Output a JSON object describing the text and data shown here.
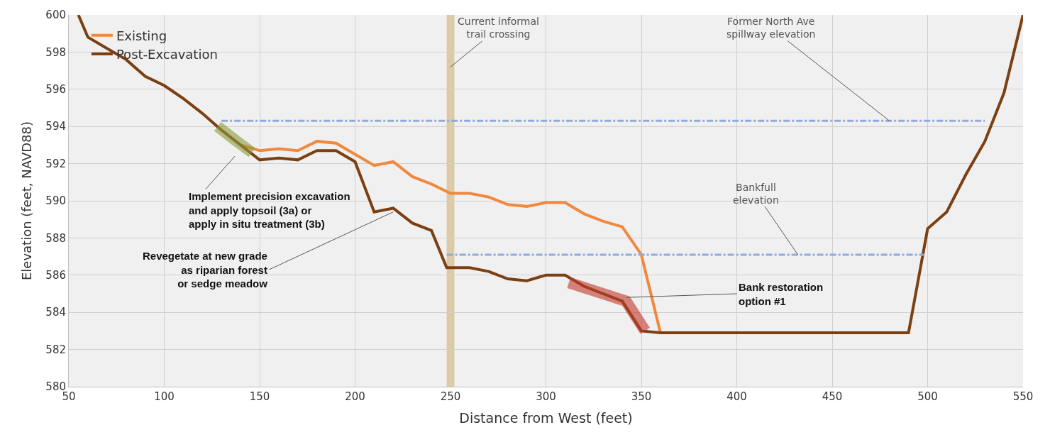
{
  "chart_data": {
    "type": "line",
    "xlabel": "Distance from West (feet)",
    "ylabel": "Elevation (feet, NAVD88)",
    "xlim": [
      50,
      550
    ],
    "xticks": [
      50,
      100,
      150,
      200,
      250,
      300,
      350,
      400,
      450,
      500,
      550
    ],
    "ylim": [
      580,
      600
    ],
    "yticks": [
      580,
      582,
      584,
      586,
      588,
      590,
      592,
      594,
      596,
      598,
      600
    ],
    "grid": true,
    "legend": "top left",
    "line_style": "solid",
    "series": [
      {
        "name": "Existing",
        "color": "#f0883e",
        "x": [
          140,
          150,
          160,
          170,
          180,
          190,
          200,
          210,
          220,
          230,
          240,
          250,
          260,
          270,
          280,
          290,
          300,
          310,
          320,
          330,
          340,
          350,
          360
        ],
        "values": [
          593.0,
          592.7,
          592.8,
          592.7,
          593.2,
          593.1,
          592.5,
          591.9,
          592.1,
          591.3,
          590.9,
          590.4,
          590.4,
          590.2,
          589.8,
          589.7,
          589.9,
          589.9,
          589.3,
          588.9,
          588.6,
          587.1,
          582.9
        ]
      },
      {
        "name": "Post-Excavation",
        "color": "#7b3f12",
        "x": [
          55,
          60,
          70,
          80,
          90,
          100,
          110,
          120,
          130,
          140,
          150,
          160,
          170,
          180,
          190,
          200,
          210,
          220,
          230,
          240,
          248,
          260,
          270,
          280,
          290,
          300,
          310,
          320,
          330,
          340,
          350,
          360,
          490,
          500,
          510,
          520,
          530,
          540,
          550
        ],
        "values": [
          600,
          598.8,
          598.2,
          597.6,
          596.7,
          596.2,
          595.5,
          594.7,
          593.8,
          593.0,
          592.2,
          592.3,
          592.2,
          592.7,
          592.7,
          592.1,
          589.4,
          589.6,
          588.8,
          588.4,
          586.4,
          586.4,
          586.2,
          585.8,
          585.7,
          586.0,
          586.0,
          585.4,
          585.0,
          584.6,
          583.0,
          582.9,
          582.9,
          588.5,
          589.4,
          591.4,
          593.2,
          595.8,
          600
        ]
      },
      {
        "color": "#8faadc",
        "x": [
          130,
          530
        ],
        "values": [
          594.3,
          594.3
        ],
        "line_style": "dashed"
      },
      {
        "color": "#8faadc",
        "x": [
          248,
          498
        ],
        "values": [
          587.1,
          587.1
        ],
        "line_style": "dashed"
      },
      {
        "color": "#8c9a3a",
        "x": [
          128,
          138,
          146
        ],
        "values": [
          594.0,
          593.2,
          592.6
        ],
        "line_style": "solid"
      },
      {
        "color": "#c0392b",
        "x": [
          312,
          330,
          342,
          352
        ],
        "values": [
          585.6,
          585.0,
          584.6,
          583.0
        ],
        "line_style": "solid"
      }
    ],
    "bands": [
      {
        "axis": "x",
        "from": 248,
        "to": 252,
        "color": "#dcc593"
      }
    ],
    "annotations": [
      "Current informal\ntrail crossing",
      {
        "text": "Former North Ave\nspillway elevation",
        "x": 480,
        "y": 594.3
      },
      {
        "text": "Bankfull\nelevation",
        "x": 432,
        "y": 587.1
      },
      "Implement precision excavation\nand apply topsoil (3a) or\napply in situ treatment (3b)",
      {
        "text": "Revegetate at new grade\nas riparian forest\nor sedge meadow",
        "x": 220,
        "y": 589.4
      },
      {
        "text": "Bank restoration\noption #1",
        "x": 342,
        "y": 584.8
      }
    ]
  }
}
